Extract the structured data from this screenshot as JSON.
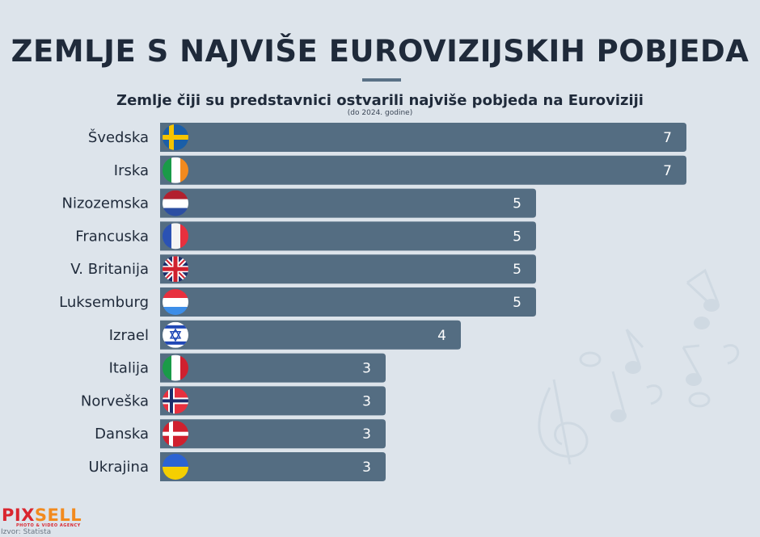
{
  "header": {
    "title": "ZEMLJE S NAJVIŠE EUROVIZIJSKIH POBJEDA",
    "subtitle": "Zemlje čiji su predstavnici ostvarili najviše pobjeda na Euroviziji",
    "note": "(do 2024. godine)"
  },
  "footer": {
    "logo_part1": "PIX",
    "logo_part2": "SELL",
    "logo_tagline": "PHOTO & VIDEO AGENCY",
    "source": "Izvor: Statista"
  },
  "colors": {
    "background": "#dde4eb",
    "bar": "#546d82",
    "title": "#1f2a3a",
    "value_label": "#ffffff",
    "logo_red": "#d9262f",
    "logo_orange": "#f28a1e"
  },
  "chart_data": {
    "type": "bar",
    "orientation": "horizontal",
    "title": "ZEMLJE S NAJVIŠE EUROVIZIJSKIH POBJEDA",
    "subtitle": "Zemlje čiji su predstavnici ostvarili najviše pobjeda na Euroviziji",
    "xlabel": "",
    "ylabel": "",
    "xlim": [
      0,
      7
    ],
    "grid": false,
    "legend": "none",
    "categories": [
      "Švedska",
      "Irska",
      "Nizozemska",
      "Francuska",
      "V. Britanija",
      "Luksemburg",
      "Izrael",
      "Italija",
      "Norveška",
      "Danska",
      "Ukrajina"
    ],
    "values": [
      7,
      7,
      5,
      5,
      5,
      5,
      4,
      3,
      3,
      3,
      3
    ],
    "flags": [
      "sweden-flag",
      "ireland-flag",
      "netherlands-flag",
      "france-flag",
      "uk-flag",
      "luxembourg-flag",
      "israel-flag",
      "italy-flag",
      "norway-flag",
      "denmark-flag",
      "ukraine-flag"
    ],
    "data_labels": [
      "7",
      "7",
      "5",
      "5",
      "5",
      "5",
      "4",
      "3",
      "3",
      "3",
      "3"
    ]
  }
}
